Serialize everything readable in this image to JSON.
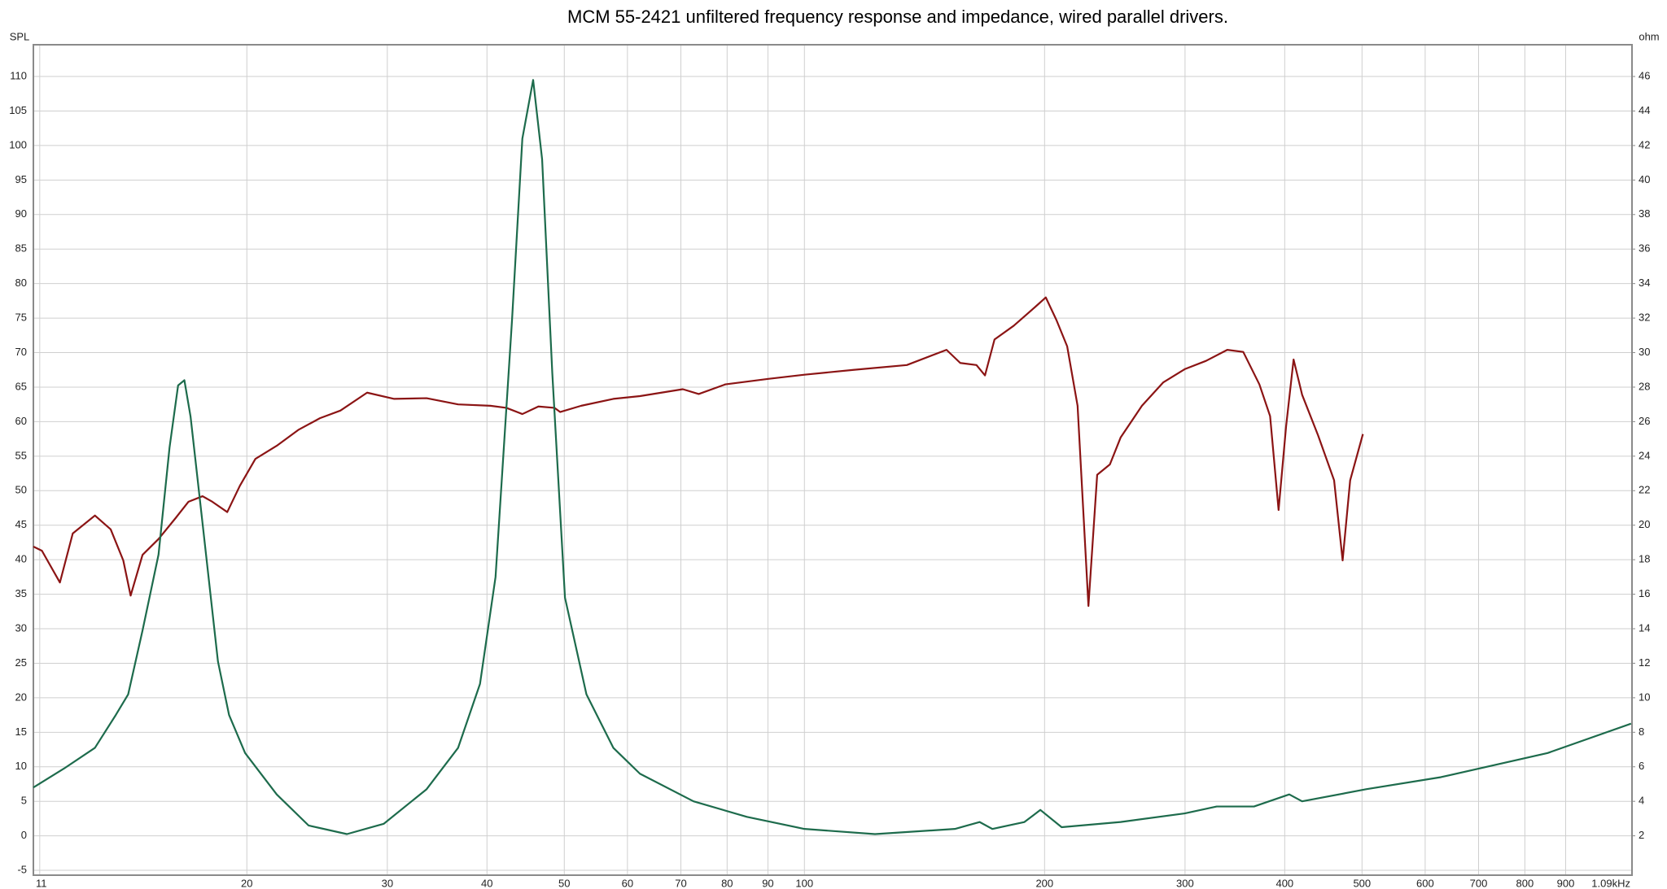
{
  "chart_data": {
    "type": "line",
    "title": "MCM 55-2421 unfiltered frequency response and impedance, wired parallel drivers.",
    "y_label": "SPL",
    "y2_label": "ohm",
    "xscale": "log",
    "grid": true,
    "xlim": [
      10.8,
      1090
    ],
    "xticks": [
      11,
      20,
      30,
      40,
      50,
      60,
      70,
      80,
      90,
      100,
      200,
      300,
      400,
      500,
      600,
      700,
      800,
      900,
      {
        "value": 1090,
        "label": "1.09kHz"
      }
    ],
    "ylim": [
      -5.7,
      114.6
    ],
    "yticks": [
      -5,
      0,
      5,
      10,
      15,
      20,
      25,
      30,
      35,
      40,
      45,
      50,
      55,
      60,
      65,
      70,
      75,
      80,
      85,
      90,
      95,
      100,
      105,
      110
    ],
    "y2lim": [
      -0.28,
      47.84
    ],
    "y2ticks": [
      2,
      4,
      6,
      8,
      10,
      12,
      14,
      16,
      18,
      20,
      22,
      24,
      26,
      28,
      30,
      32,
      34,
      36,
      38,
      40,
      42,
      44,
      46
    ],
    "series": [
      {
        "color": "#8b1414",
        "axis": "y",
        "x": [
          10.8,
          11.07,
          11.66,
          12.1,
          12.9,
          13.5,
          14.0,
          14.3,
          14.8,
          15.5,
          16.3,
          16.9,
          17.6,
          18.1,
          18.9,
          19.6,
          20.5,
          21.8,
          23.2,
          24.7,
          26.2,
          28.3,
          30.6,
          33.6,
          36.8,
          40.4,
          42.3,
          44.3,
          46.4,
          48.6,
          49.4,
          52.5,
          57.6,
          62.2,
          70.4,
          73.7,
          79.6,
          90.1,
          100,
          115.2,
          134.4,
          150.7,
          156.8,
          164.3,
          168.4,
          173.1,
          183.0,
          194.6,
          200.7,
          207,
          213.5,
          220,
          227,
          232.8,
          241.5,
          249.1,
          264.9,
          281.8,
          299.7,
          318.7,
          338.9,
          354.9,
          371.8,
          383.5,
          393,
          401.6,
          410.4,
          420.6,
          440.5,
          461.3,
          472.8,
          483.2,
          501.3
        ],
        "values": [
          41.9,
          41.3,
          36.7,
          43.8,
          46.4,
          44.4,
          39.9,
          34.8,
          40.7,
          43,
          46.1,
          48.4,
          49.2,
          48.4,
          46.9,
          50.7,
          54.6,
          56.5,
          58.8,
          60.5,
          61.6,
          64.2,
          63.3,
          63.4,
          62.5,
          62.3,
          62,
          61.1,
          62.2,
          62,
          61.4,
          62.3,
          63.3,
          63.7,
          64.7,
          64,
          65.4,
          66.2,
          66.8,
          67.5,
          68.2,
          70.4,
          68.5,
          68.2,
          66.7,
          71.9,
          73.9,
          76.6,
          78,
          74.7,
          70.9,
          62.3,
          33.3,
          52.3,
          53.8,
          57.7,
          62.3,
          65.7,
          67.6,
          68.8,
          70.4,
          70.1,
          65.4,
          60.8,
          47.2,
          59.3,
          69,
          63.9,
          58,
          51.5,
          39.9,
          51.5,
          58.2
        ]
      },
      {
        "color": "#1d6b4c",
        "axis": "y2",
        "x": [
          10.8,
          11.8,
          12.9,
          13.7,
          14.2,
          14.8,
          15.5,
          16.0,
          16.4,
          16.7,
          17.0,
          17.6,
          18.4,
          19.0,
          19.9,
          21.8,
          23.9,
          26.7,
          29.7,
          33.6,
          36.8,
          39.2,
          41.0,
          43.0,
          44.3,
          45.7,
          46.9,
          48.3,
          50.1,
          53.3,
          57.6,
          62.2,
          72.6,
          84.7,
          100,
          122.6,
          154.4,
          165.8,
          172,
          188.7,
          197.6,
          210.1,
          249.1,
          299.7,
          328.7,
          366.1,
          405.3,
          420.6,
          506,
          628,
          854.5,
          1087
        ],
        "values": [
          4.8,
          5.9,
          7.1,
          9.0,
          10.2,
          13.9,
          18.3,
          24.5,
          28.1,
          28.4,
          26.3,
          20.1,
          12.1,
          9.0,
          6.8,
          4.4,
          2.6,
          2.1,
          2.7,
          4.7,
          7.1,
          10.8,
          17.0,
          31.9,
          42.4,
          45.8,
          41.2,
          28.8,
          15.8,
          10.2,
          7.1,
          5.6,
          4.0,
          3.1,
          2.4,
          2.1,
          2.4,
          2.8,
          2.4,
          2.8,
          3.5,
          2.5,
          2.8,
          3.3,
          3.7,
          3.7,
          4.4,
          4.0,
          4.7,
          5.4,
          6.8,
          8.5
        ]
      }
    ]
  }
}
